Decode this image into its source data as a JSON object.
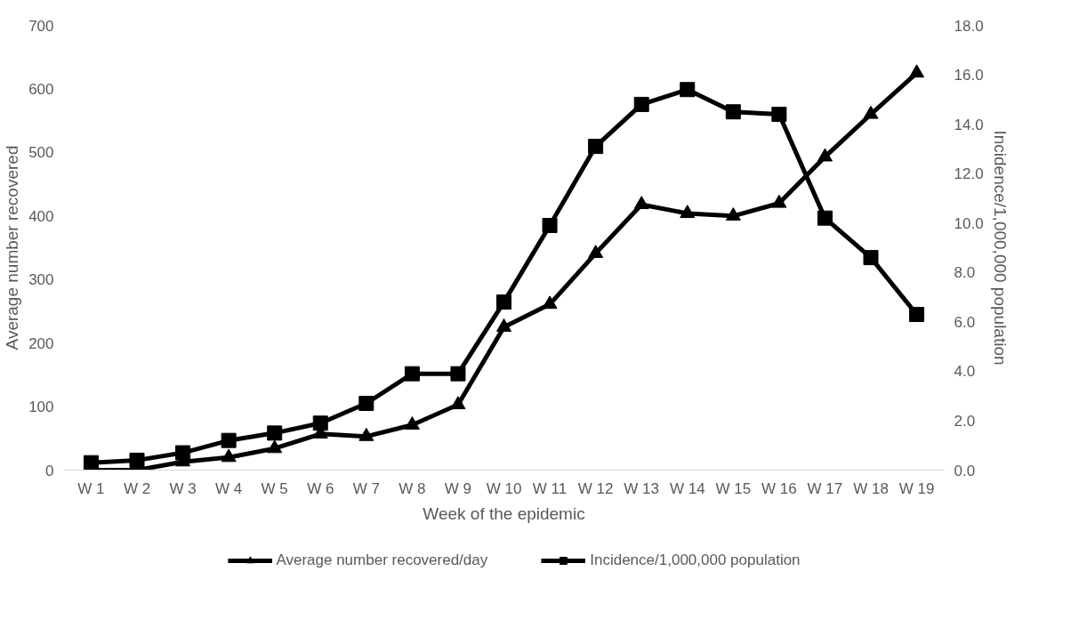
{
  "chart_data": {
    "type": "line",
    "xlabel": "Week of the epidemic",
    "ylabel": "Average number recovered",
    "y2label": "Incidence/1,000,000 population",
    "categories": [
      "W 1",
      "W 2",
      "W 3",
      "W 4",
      "W 5",
      "W 6",
      "W 7",
      "W 8",
      "W 9",
      "W 10",
      "W 11",
      "W 12",
      "W 13",
      "W 14",
      "W 15",
      "W 16",
      "W 17",
      "W 18",
      "W 19"
    ],
    "series": [
      {
        "name": "Average number recovered/day",
        "color": "#000000",
        "marker": "triangle",
        "values": [
          0,
          0,
          13,
          20,
          34,
          57,
          53,
          71,
          103,
          225,
          261,
          341,
          418,
          404,
          400,
          420,
          493,
          560,
          625
        ]
      },
      {
        "name": "Incidence/1,000,000 population",
        "color": "#000000",
        "marker": "square",
        "axis": "y2",
        "values": [
          0.3,
          0.4,
          0.7,
          1.2,
          1.5,
          1.9,
          2.7,
          3.9,
          3.9,
          6.8,
          9.9,
          13.1,
          14.8,
          15.4,
          14.5,
          14.4,
          10.2,
          8.6,
          6.3
        ]
      }
    ],
    "ylim": [
      0,
      700
    ],
    "yticks": [
      0,
      100,
      200,
      300,
      400,
      500,
      600,
      700
    ],
    "y2lim": [
      0,
      18
    ],
    "y2ticks": [
      {
        "value": 0,
        "label": "0.0"
      },
      {
        "value": 2,
        "label": "2.0"
      },
      {
        "value": 4,
        "label": "4.0"
      },
      {
        "value": 6,
        "label": "6.0"
      },
      {
        "value": 8,
        "label": "8.0"
      },
      {
        "value": 10,
        "label": "10.0"
      },
      {
        "value": 12,
        "label": "12.0"
      },
      {
        "value": 14,
        "label": "14.0"
      },
      {
        "value": 16,
        "label": "16.0"
      },
      {
        "value": 18,
        "label": "18.0"
      }
    ],
    "grid": false,
    "legend": "bottom",
    "line_style": "solid"
  }
}
